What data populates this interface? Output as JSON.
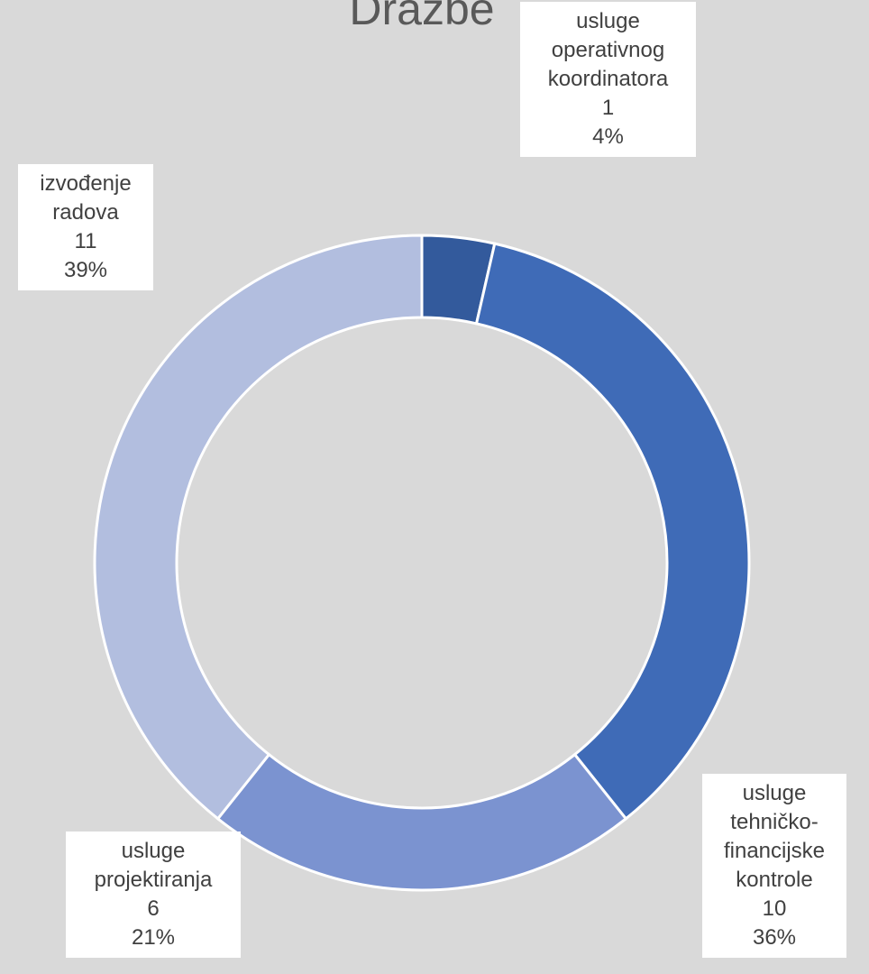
{
  "chart_data": {
    "type": "donut",
    "title": "Dražbe",
    "categories": [
      "usluge operativnog koordinatora",
      "usluge tehničko-financijske kontrole",
      "usluge projektiranja",
      "izvođenje radova"
    ],
    "values": [
      1,
      10,
      6,
      11
    ],
    "percent_labels": [
      "4%",
      "36%",
      "21%",
      "39%"
    ],
    "colors": [
      "#335a9c",
      "#3f6bb7",
      "#7b93d0",
      "#b2bedf"
    ]
  }
}
